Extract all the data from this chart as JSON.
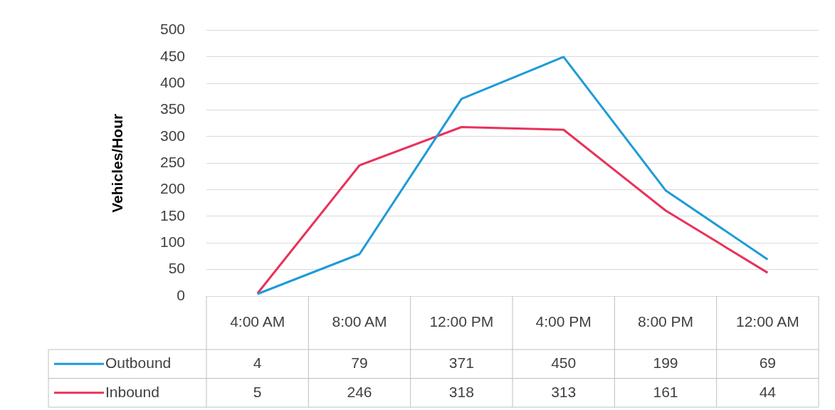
{
  "chart_data": {
    "type": "line",
    "ylabel": "Vehicles/Hour",
    "categories": [
      "4:00 AM",
      "8:00 AM",
      "12:00 PM",
      "4:00 PM",
      "8:00 PM",
      "12:00 AM"
    ],
    "series": [
      {
        "name": "Outbound",
        "color": "#1f9bd7",
        "values": [
          4,
          79,
          371,
          450,
          199,
          69
        ]
      },
      {
        "name": "Inbound",
        "color": "#e8325a",
        "values": [
          5,
          246,
          318,
          313,
          161,
          44
        ]
      }
    ],
    "ylim": [
      0,
      500
    ],
    "yticks": [
      0,
      50,
      100,
      150,
      200,
      250,
      300,
      350,
      400,
      450,
      500
    ],
    "grid": "y",
    "legend": "bottom left",
    "data_labels": true,
    "marker": "none",
    "line_style": "solid"
  }
}
